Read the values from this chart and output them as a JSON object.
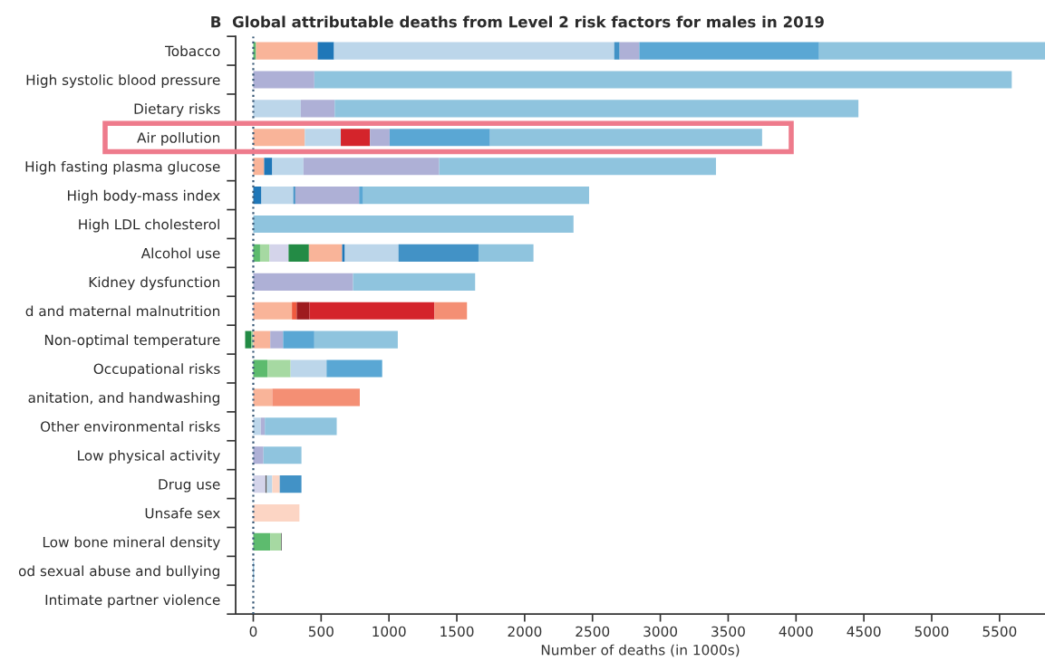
{
  "chart_data": {
    "type": "bar",
    "orientation": "horizontal",
    "stacked": true,
    "title": "B  Global attributable deaths from Level 2 risk factors for males in 2019",
    "xlabel": "Number of deaths (in 1000s)",
    "categories": [
      "Tobacco",
      "High systolic blood pressure",
      "Dietary risks",
      "Air pollution",
      "High fasting plasma glucose",
      "High body-mass index",
      "High LDL cholesterol",
      "Alcohol use",
      "Kidney dysfunction",
      "d and maternal malnutrition",
      "Non-optimal temperature",
      "Occupational risks",
      "anitation, and handwashing",
      "Other environmental risks",
      "Low physical activity",
      "Drug use",
      "Unsafe sex",
      "Low bone mineral density",
      "od sexual abuse and bullying",
      "Intimate partner violence"
    ],
    "series": [
      {
        "values": [
          20,
          450,
          350,
          380,
          80,
          60,
          2360,
          50,
          735,
          285,
          -15,
          105,
          140,
          55,
          75,
          90,
          340,
          125,
          5,
          null
        ],
        "colors": [
          "#5dbb6e",
          "#aeb0d6",
          "#bcd6ea",
          "#f9b499",
          "#f9b499",
          "#1f77b8",
          "#8fc4de",
          "#5dbb6e",
          "#aeb0d6",
          "#f9b499",
          "#a6d9a2",
          "#5dbb6e",
          "#f9b499",
          "#bcd6ea",
          "#aeb0d6",
          "#d4d4ea",
          "#fcd5c4",
          "#5dbb6e",
          "#4292c6",
          null
        ]
      },
      {
        "values": [
          455,
          5140,
          250,
          265,
          60,
          235,
          null,
          70,
          900,
          35,
          -45,
          170,
          645,
          30,
          280,
          10,
          null,
          80,
          null,
          null
        ],
        "colors": [
          "#f9b499",
          "#8fc4de",
          "#aeb0d6",
          "#bcd6ea",
          "#1f77b8",
          "#bcd6ea",
          null,
          "#a6d9a2",
          "#8fc4de",
          "#ef5a3f",
          "#238b45",
          "#a6d9a2",
          "#f48f74",
          "#aeb0d6",
          "#8fc4de",
          "#555555",
          null,
          "#a6d9a2",
          null,
          null
        ]
      },
      {
        "values": [
          120,
          null,
          3860,
          215,
          230,
          15,
          null,
          140,
          null,
          95,
          125,
          265,
          null,
          530,
          null,
          40,
          null,
          5,
          null,
          null
        ],
        "colors": [
          "#1f77b8",
          null,
          "#8fc4de",
          "#d4242b",
          "#bcd6ea",
          "#4292c6",
          null,
          "#d4d4ea",
          null,
          "#9e1b1f",
          "#f9b499",
          "#bcd6ea",
          null,
          "#8fc4de",
          null,
          "#bcd6ea",
          null,
          "#555555",
          null,
          null
        ]
      },
      {
        "values": [
          2065,
          null,
          null,
          145,
          1000,
          470,
          null,
          150,
          null,
          920,
          95,
          410,
          null,
          null,
          null,
          55,
          null,
          null,
          null,
          null
        ],
        "colors": [
          "#bcd6ea",
          null,
          null,
          "#aeb0d6",
          "#aeb0d6",
          "#aeb0d6",
          null,
          "#238b45",
          null,
          "#d4242b",
          "#aeb0d6",
          "#5aa7d4",
          null,
          null,
          null,
          "#fcd5c4",
          null,
          null,
          null,
          null
        ]
      },
      {
        "values": [
          40,
          null,
          null,
          740,
          2040,
          30,
          null,
          245,
          null,
          240,
          230,
          null,
          null,
          null,
          null,
          160,
          null,
          null,
          null,
          null
        ],
        "colors": [
          "#4292c6",
          null,
          null,
          "#5aa7d4",
          "#8fc4de",
          "#5aa7d4",
          null,
          "#f9b499",
          null,
          "#f48f74",
          "#5aa7d4",
          null,
          null,
          null,
          null,
          "#4292c6",
          null,
          null,
          null,
          null
        ]
      },
      {
        "values": [
          145,
          null,
          null,
          2005,
          null,
          1665,
          null,
          20,
          null,
          null,
          615,
          null,
          null,
          null,
          null,
          null,
          null,
          null,
          null,
          null
        ],
        "colors": [
          "#aeb0d6",
          null,
          null,
          "#8fc4de",
          null,
          "#8fc4de",
          null,
          "#1f77b8",
          null,
          null,
          "#8fc4de",
          null,
          null,
          null,
          null,
          null,
          null,
          null,
          null,
          null
        ]
      },
      {
        "values": [
          1325,
          null,
          null,
          null,
          null,
          null,
          null,
          395,
          null,
          null,
          null,
          null,
          null,
          null,
          null,
          null,
          null,
          null,
          null,
          null
        ],
        "colors": [
          "#5aa7d4",
          null,
          null,
          null,
          null,
          null,
          null,
          "#bcd6ea",
          null,
          null,
          null,
          null,
          null,
          null,
          null,
          null,
          null,
          null,
          null,
          null
        ]
      },
      {
        "values": [
          1665,
          null,
          null,
          null,
          null,
          null,
          null,
          590,
          null,
          null,
          null,
          null,
          null,
          null,
          null,
          null,
          null,
          null,
          null,
          null
        ],
        "colors": [
          "#8fc4de",
          null,
          null,
          null,
          null,
          null,
          null,
          "#4292c6",
          null,
          null,
          null,
          null,
          null,
          null,
          null,
          null,
          null,
          null,
          null,
          null
        ]
      },
      {
        "values": [
          null,
          null,
          null,
          null,
          null,
          null,
          null,
          405,
          null,
          null,
          null,
          null,
          null,
          null,
          null,
          null,
          null,
          null,
          null,
          null
        ],
        "colors": [
          null,
          null,
          null,
          null,
          null,
          null,
          null,
          "#8fc4de",
          null,
          null,
          null,
          null,
          null,
          null,
          null,
          null,
          null,
          null,
          null,
          null
        ]
      }
    ],
    "xlim": [
      -130,
      5835
    ],
    "xticks": [
      0,
      500,
      1000,
      1500,
      2000,
      2500,
      3000,
      3500,
      4000,
      4500,
      5000,
      5500
    ],
    "ref_lines": [
      {
        "axis": "x",
        "value": 0,
        "line_style": "dotted",
        "color": "#3a5a78"
      }
    ],
    "grid": false,
    "legend": false
  }
}
